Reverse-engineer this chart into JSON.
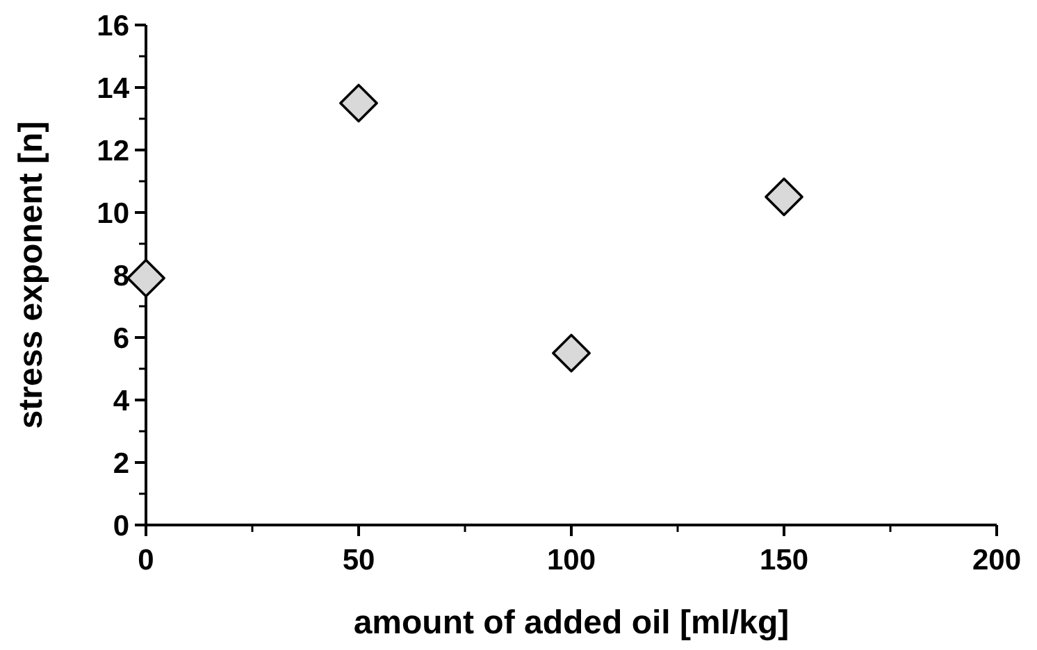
{
  "chart_data": {
    "type": "scatter",
    "xlabel": "amount of added oil [ml/kg]",
    "ylabel": "stress exponent [n]",
    "x": [
      0,
      50,
      100,
      150
    ],
    "series": [
      {
        "color": "#d9d9d9",
        "values": [
          7.9,
          13.5,
          5.5,
          10.5
        ]
      }
    ],
    "xlim": [
      0,
      200
    ],
    "xticks": [
      0,
      50,
      100,
      150,
      200
    ],
    "ylim": [
      0,
      16
    ],
    "yticks": [
      0,
      2,
      4,
      6,
      8,
      10,
      12,
      14,
      16
    ],
    "marker": "diamond"
  }
}
